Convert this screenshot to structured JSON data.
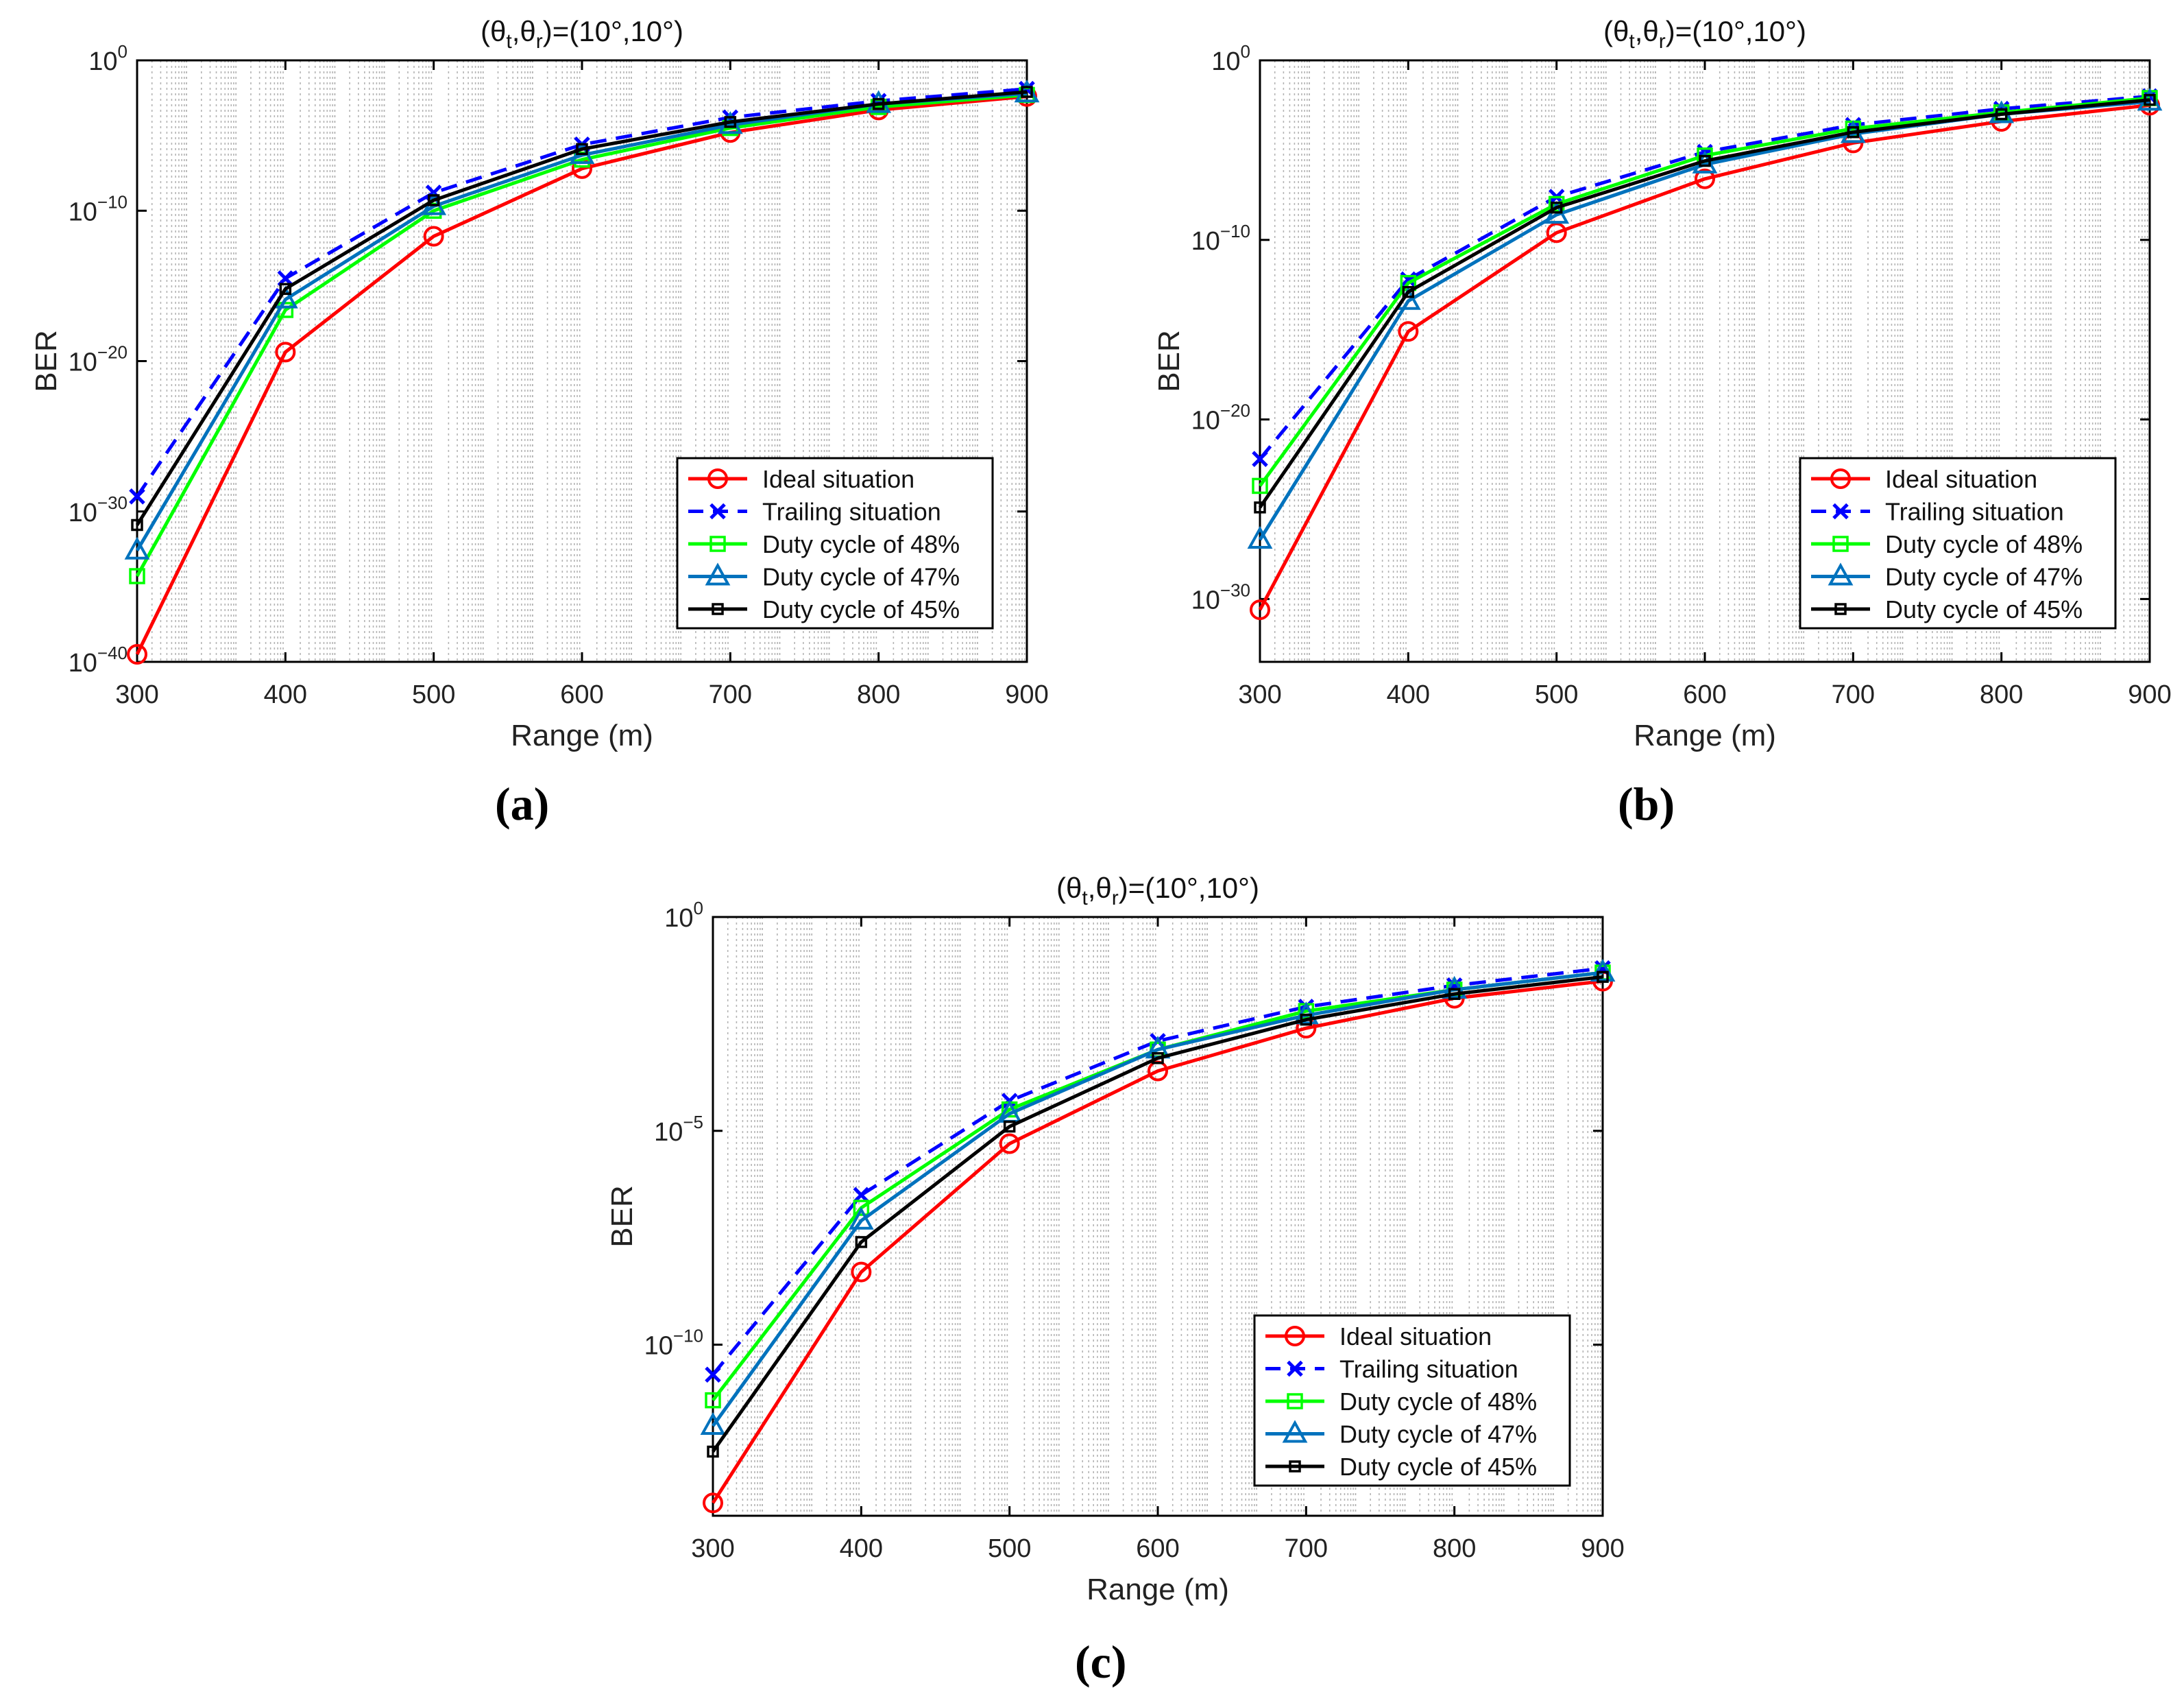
{
  "figure": {
    "captions": [
      "(a)",
      "(b)",
      "(c)"
    ]
  },
  "chart_data": [
    {
      "type": "line",
      "id": "a",
      "title": "(θt,θr)=(10°,10°)",
      "title_main": "(θ",
      "title_sub1": "t",
      "title_mid": ",θ",
      "title_sub2": "r",
      "title_end": ")=(10°,10°)",
      "xlabel": "Range (m)",
      "ylabel": "BER",
      "yscale": "log",
      "xlim": [
        300,
        900
      ],
      "ylim_exp": [
        -40,
        0
      ],
      "x": [
        300,
        400,
        500,
        600,
        700,
        800,
        900
      ],
      "xticks": [
        300,
        400,
        500,
        600,
        700,
        800,
        900
      ],
      "yticks": [
        {
          "base": "10",
          "exp": "0",
          "value": 0
        },
        {
          "base": "10",
          "exp": "−10",
          "value": -10
        },
        {
          "base": "10",
          "exp": "−20",
          "value": -20
        },
        {
          "base": "10",
          "exp": "−30",
          "value": -30
        },
        {
          "base": "10",
          "exp": "−40",
          "value": -40
        }
      ],
      "grid": "minor-x-dotted",
      "legend": "bottom-right",
      "series": [
        {
          "name": "Ideal situation",
          "color": "#ff0000",
          "dash": "solid",
          "marker": "circle",
          "values_log10": [
            -39.5,
            -19.4,
            -11.7,
            -7.2,
            -4.8,
            -3.3,
            -2.4
          ]
        },
        {
          "name": "Trailing situation",
          "color": "#0000ff",
          "dash": "dashed",
          "marker": "x",
          "values_log10": [
            -29.0,
            -14.5,
            -8.8,
            -5.6,
            -3.8,
            -2.7,
            -1.9
          ]
        },
        {
          "name": "Duty cycle of 48%",
          "color": "#00ff00",
          "dash": "solid",
          "marker": "square",
          "values_log10": [
            -34.3,
            -16.6,
            -10.0,
            -6.6,
            -4.5,
            -3.1,
            -2.3
          ]
        },
        {
          "name": "Duty cycle of 47%",
          "color": "#0072bd",
          "dash": "solid",
          "marker": "triangle",
          "values_log10": [
            -32.6,
            -15.9,
            -9.7,
            -6.3,
            -4.3,
            -2.9,
            -2.2
          ]
        },
        {
          "name": "Duty cycle of 45%",
          "color": "#000000",
          "dash": "solid",
          "marker": "small-square",
          "values_log10": [
            -30.9,
            -15.2,
            -9.3,
            -5.9,
            -4.1,
            -2.9,
            -2.1
          ]
        }
      ]
    },
    {
      "type": "line",
      "id": "b",
      "title": "(θt,θr)=(10°,10°)",
      "title_main": "(θ",
      "title_sub1": "t",
      "title_mid": ",θ",
      "title_sub2": "r",
      "title_end": ")=(10°,10°)",
      "xlabel": "Range (m)",
      "ylabel": "BER",
      "yscale": "log",
      "xlim": [
        300,
        900
      ],
      "ylim_exp": [
        -33.5,
        0
      ],
      "x": [
        300,
        400,
        500,
        600,
        700,
        800,
        900
      ],
      "xticks": [
        300,
        400,
        500,
        600,
        700,
        800,
        900
      ],
      "yticks": [
        {
          "base": "10",
          "exp": "0",
          "value": 0
        },
        {
          "base": "10",
          "exp": "−10",
          "value": -10
        },
        {
          "base": "10",
          "exp": "−20",
          "value": -20
        },
        {
          "base": "10",
          "exp": "−30",
          "value": -30
        }
      ],
      "grid": "minor-x-dotted",
      "legend": "bottom-right",
      "series": [
        {
          "name": "Ideal situation",
          "color": "#ff0000",
          "dash": "solid",
          "marker": "circle",
          "values_log10": [
            -30.6,
            -15.1,
            -9.6,
            -6.6,
            -4.6,
            -3.4,
            -2.5
          ]
        },
        {
          "name": "Trailing situation",
          "color": "#0000ff",
          "dash": "dashed",
          "marker": "x",
          "values_log10": [
            -22.2,
            -12.2,
            -7.6,
            -5.1,
            -3.6,
            -2.7,
            -2.0
          ]
        },
        {
          "name": "Duty cycle of 48%",
          "color": "#00ff00",
          "dash": "solid",
          "marker": "square",
          "values_log10": [
            -23.7,
            -12.4,
            -8.0,
            -5.3,
            -3.8,
            -2.9,
            -2.1
          ]
        },
        {
          "name": "Duty cycle of 47%",
          "color": "#0072bd",
          "dash": "solid",
          "marker": "triangle",
          "values_log10": [
            -26.7,
            -13.4,
            -8.6,
            -5.8,
            -4.1,
            -3.0,
            -2.3
          ]
        },
        {
          "name": "Duty cycle of 45%",
          "color": "#000000",
          "dash": "solid",
          "marker": "small-square",
          "values_log10": [
            -24.9,
            -12.9,
            -8.2,
            -5.6,
            -4.0,
            -3.0,
            -2.2
          ]
        }
      ]
    },
    {
      "type": "line",
      "id": "c",
      "title": "(θt,θr)=(10°,10°)",
      "title_main": "(θ",
      "title_sub1": "t",
      "title_mid": ",θ",
      "title_sub2": "r",
      "title_end": ")=(10°,10°)",
      "xlabel": "Range (m)",
      "ylabel": "BER",
      "yscale": "log",
      "xlim": [
        300,
        900
      ],
      "ylim_exp": [
        -14,
        0
      ],
      "x": [
        300,
        400,
        500,
        600,
        700,
        800,
        900
      ],
      "xticks": [
        300,
        400,
        500,
        600,
        700,
        800,
        900
      ],
      "yticks": [
        {
          "base": "10",
          "exp": "0",
          "value": 0
        },
        {
          "base": "10",
          "exp": "−5",
          "value": -5
        },
        {
          "base": "10",
          "exp": "−10",
          "value": -10
        }
      ],
      "grid": "minor-x-dotted",
      "legend": "bottom-right",
      "series": [
        {
          "name": "Ideal situation",
          "color": "#ff0000",
          "dash": "solid",
          "marker": "circle",
          "values_log10": [
            -13.7,
            -8.3,
            -5.3,
            -3.6,
            -2.6,
            -1.9,
            -1.5
          ]
        },
        {
          "name": "Trailing situation",
          "color": "#0000ff",
          "dash": "dashed",
          "marker": "x",
          "values_log10": [
            -10.7,
            -6.5,
            -4.3,
            -2.9,
            -2.1,
            -1.6,
            -1.2
          ]
        },
        {
          "name": "Duty cycle of 48%",
          "color": "#00ff00",
          "dash": "solid",
          "marker": "square",
          "values_log10": [
            -11.3,
            -6.8,
            -4.5,
            -3.1,
            -2.2,
            -1.7,
            -1.3
          ]
        },
        {
          "name": "Duty cycle of 47%",
          "color": "#0072bd",
          "dash": "solid",
          "marker": "triangle",
          "values_log10": [
            -11.9,
            -7.1,
            -4.6,
            -3.1,
            -2.3,
            -1.7,
            -1.3
          ]
        },
        {
          "name": "Duty cycle of 45%",
          "color": "#000000",
          "dash": "solid",
          "marker": "small-square",
          "values_log10": [
            -12.5,
            -7.6,
            -4.9,
            -3.3,
            -2.4,
            -1.8,
            -1.4
          ]
        }
      ]
    }
  ]
}
